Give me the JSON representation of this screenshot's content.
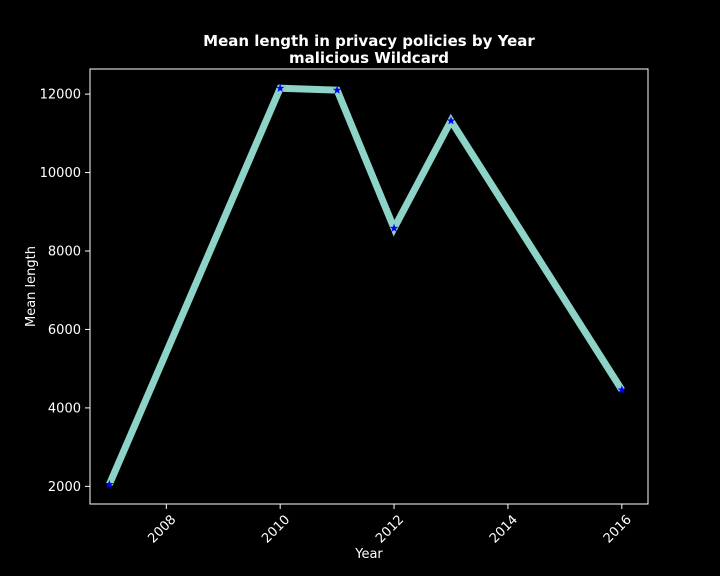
{
  "chart_data": {
    "type": "line",
    "title": "Mean length in privacy policies by Year",
    "subtitle": "malicious Wildcard",
    "xlabel": "Year",
    "ylabel": "Mean length",
    "xlim": [
      2006.66,
      2016.46
    ],
    "ylim": [
      1550,
      12640
    ],
    "xticks": [
      2008,
      2010,
      2012,
      2014,
      2016
    ],
    "yticks": [
      2000,
      4000,
      6000,
      8000,
      10000,
      12000
    ],
    "grid": false,
    "legend": "none",
    "series": [
      {
        "x": [
          2007,
          2010,
          2011,
          2012,
          2013,
          2016
        ],
        "y": [
          2050,
          12150,
          12100,
          8580,
          11320,
          4460
        ],
        "line_color": "#8dd3c7",
        "marker_color": "#0000ff",
        "marker": "star"
      }
    ],
    "colors": {
      "background": "#000000",
      "foreground": "#ffffff"
    }
  }
}
